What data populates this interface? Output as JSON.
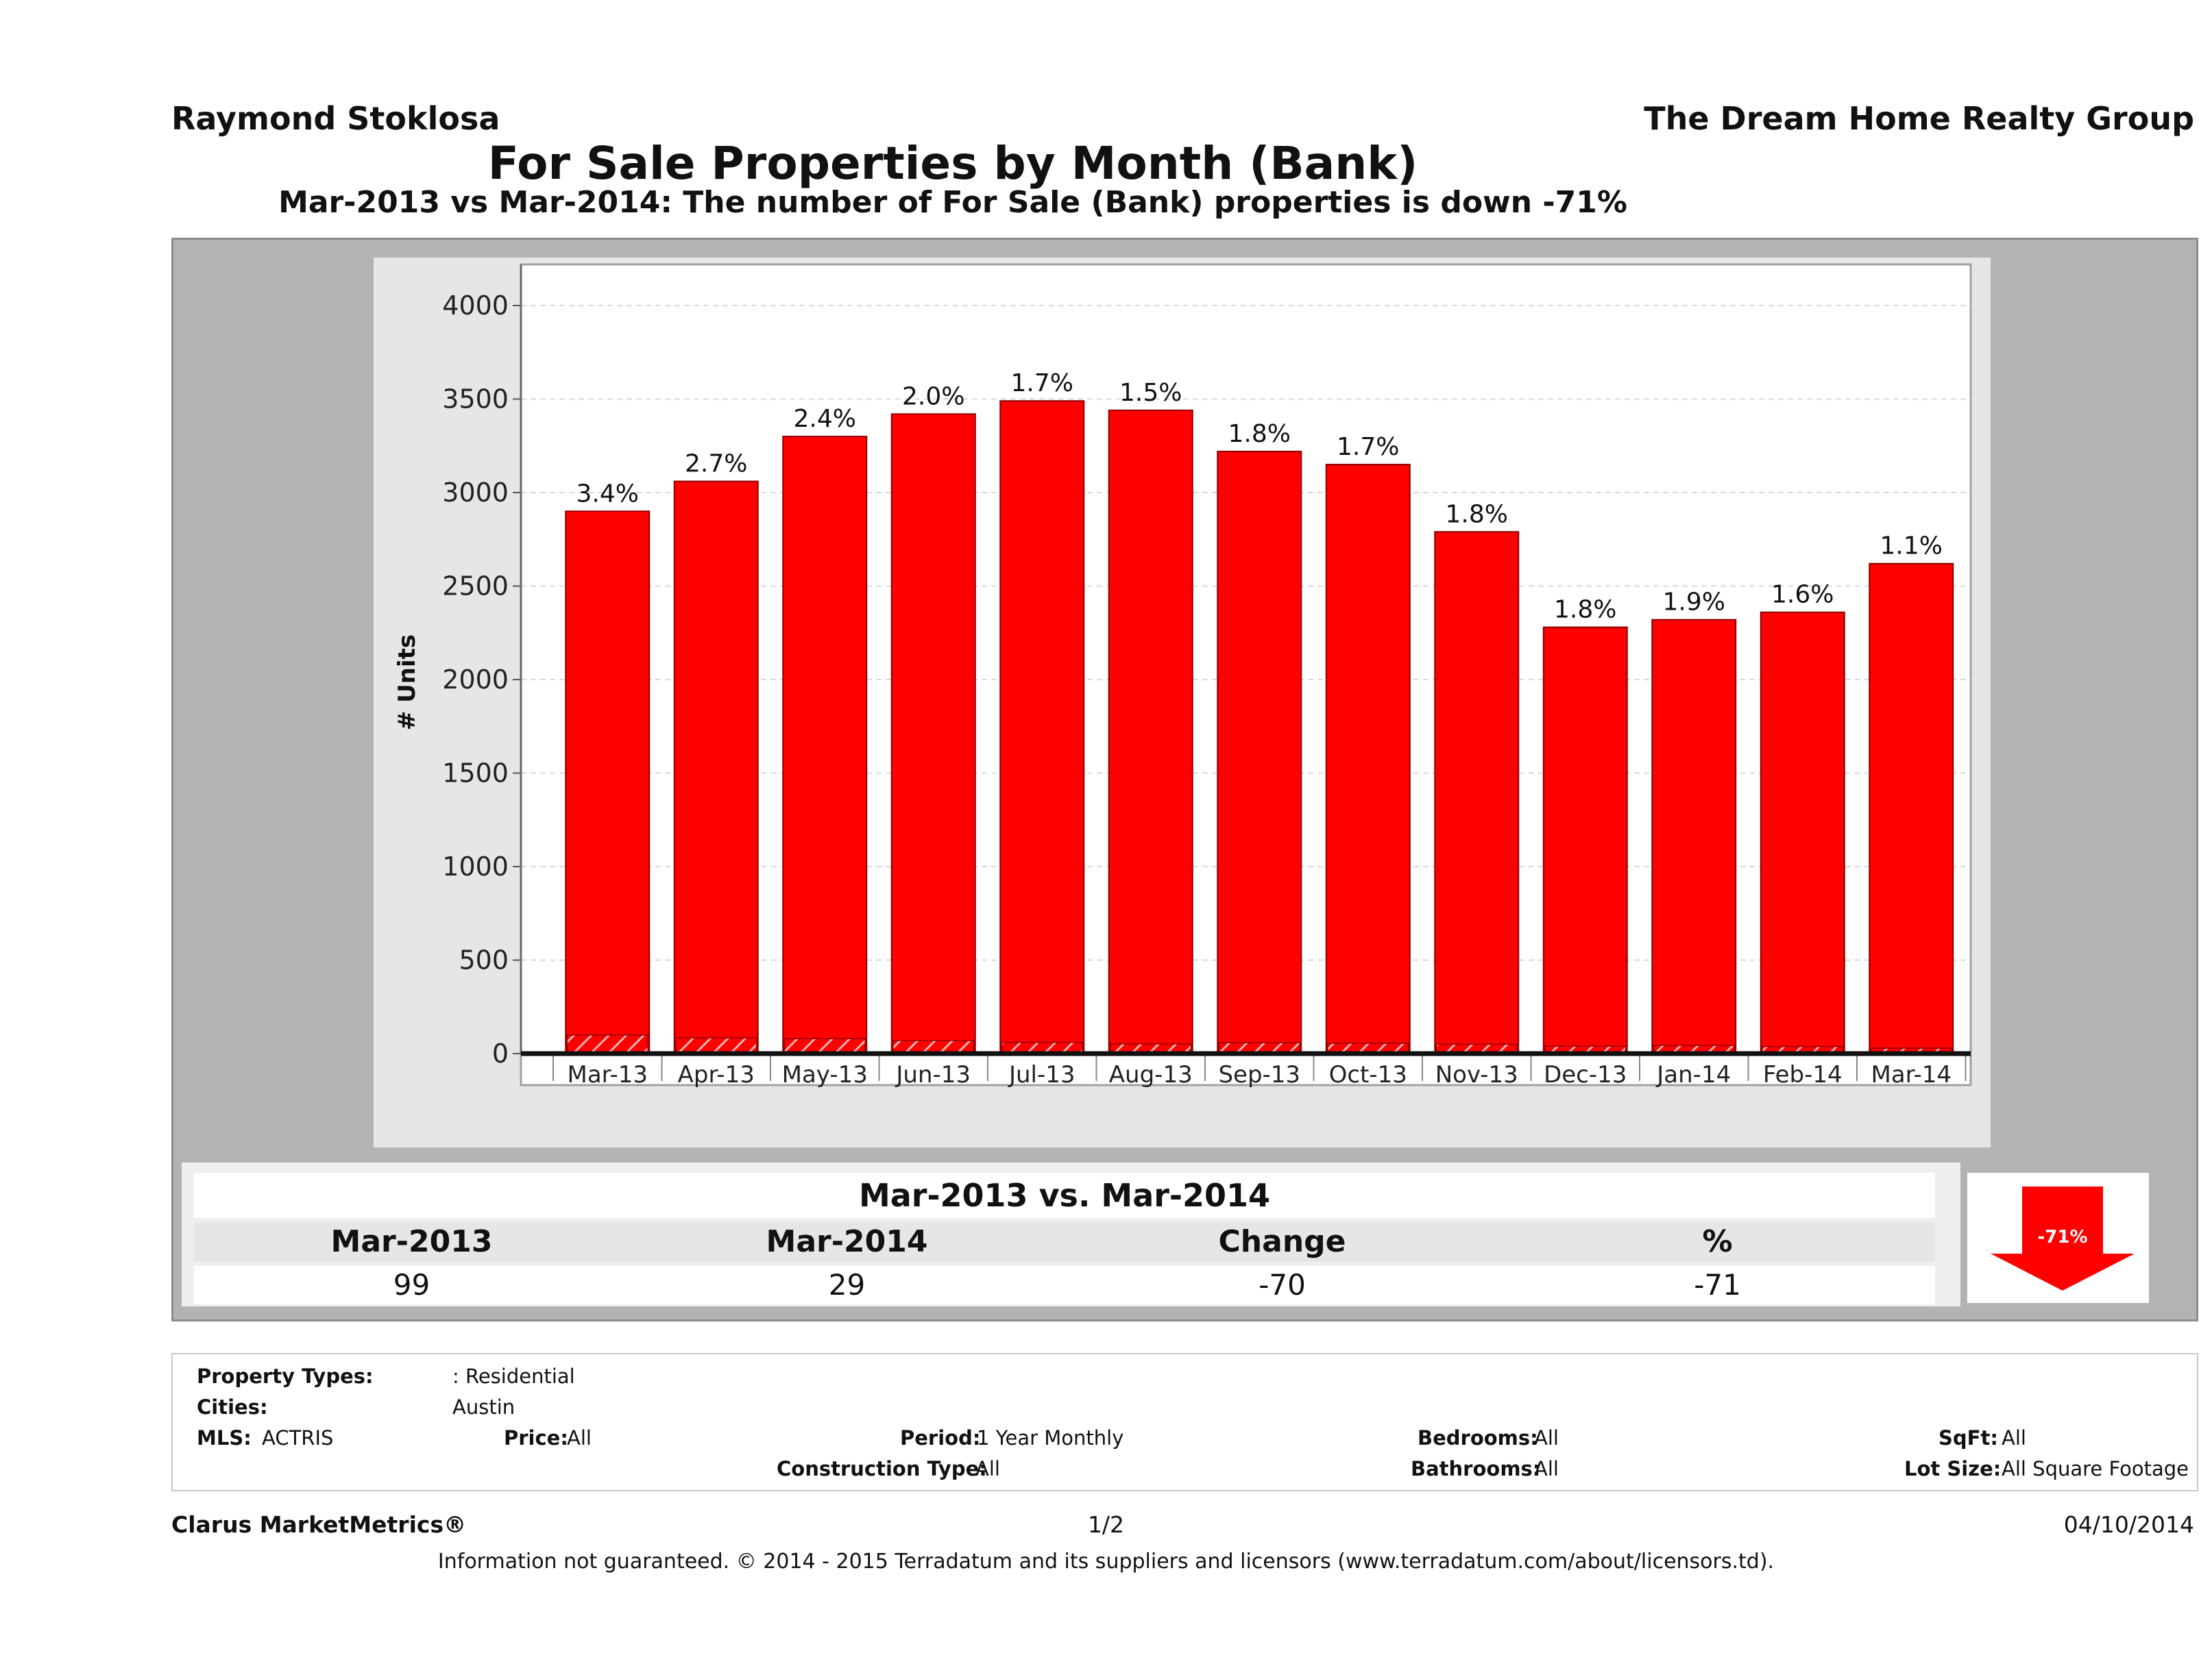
{
  "header": {
    "agent": "Raymond Stoklosa",
    "company": "The Dream Home Realty Group",
    "title": "For Sale Properties by Month (Bank)",
    "subtitle": "Mar-2013 vs Mar-2014: The number of For Sale (Bank)  properties is down -71%"
  },
  "chart_data": {
    "type": "bar",
    "categories": [
      "Mar-13",
      "Apr-13",
      "May-13",
      "Jun-13",
      "Jul-13",
      "Aug-13",
      "Sep-13",
      "Oct-13",
      "Nov-13",
      "Dec-13",
      "Jan-14",
      "Feb-14",
      "Mar-14"
    ],
    "series": [
      {
        "values": [
          2900,
          3060,
          3300,
          3420,
          3490,
          3440,
          3220,
          3150,
          2790,
          2280,
          2320,
          2360,
          2620
        ]
      },
      {
        "values": [
          99,
          84,
          80,
          70,
          60,
          52,
          58,
          55,
          50,
          40,
          44,
          38,
          29
        ]
      }
    ],
    "bar_labels": [
      "3.4%",
      "2.7%",
      "2.4%",
      "2.0%",
      "1.7%",
      "1.5%",
      "1.8%",
      "1.7%",
      "1.8%",
      "1.8%",
      "1.9%",
      "1.6%",
      "1.1%"
    ],
    "ylabel": "# Units",
    "xlabel": "",
    "ylim": [
      0,
      4000
    ],
    "yticks": [
      0,
      500,
      1000,
      1500,
      2000,
      2500,
      3000,
      3500,
      4000
    ],
    "grid": true,
    "colors": {
      "bar": "#ff0000",
      "bar_edge": "#8b0000",
      "hatch": "#ffb3b3",
      "plot_bg": "#ffffff",
      "frame_bg": "#e6e6e6",
      "grid": "#d9d9d9"
    }
  },
  "comparison": {
    "title": "Mar-2013 vs. Mar-2014",
    "headers": [
      "Mar-2013",
      "Mar-2014",
      "Change",
      "%"
    ],
    "values": [
      "99",
      "29",
      "-70",
      "-71"
    ],
    "badge": "-71%",
    "badge_color": "#ff0000"
  },
  "filters": {
    "property_types_label": "Property Types:",
    "property_types_value": ": Residential",
    "cities_label": "Cities:",
    "cities_value": "Austin",
    "mls_label": "MLS:",
    "mls_value": "ACTRIS",
    "price_label": "Price:",
    "price_value": "All",
    "period_label": "Period:",
    "period_value": "1 Year Monthly",
    "construction_label": "Construction Type:",
    "construction_value": "All",
    "bedrooms_label": "Bedrooms:",
    "bedrooms_value": "All",
    "bathrooms_label": "Bathrooms:",
    "bathrooms_value": "All",
    "sqft_label": "SqFt:",
    "sqft_value": "All",
    "lot_label": "Lot Size:",
    "lot_value": "All Square Footage"
  },
  "footer": {
    "brand": "Clarus MarketMetrics®",
    "page": "1/2",
    "date": "04/10/2014",
    "disclaimer": "Information not guaranteed. © 2014 - 2015 Terradatum and its suppliers and licensors (www.terradatum.com/about/licensors.td)."
  }
}
